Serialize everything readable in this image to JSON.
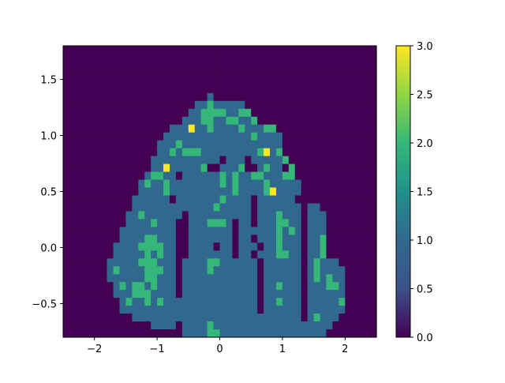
{
  "chart_data": {
    "type": "heatmap",
    "title": "",
    "xlabel": "",
    "ylabel": "",
    "xlim": [
      -2.5,
      2.5
    ],
    "ylim": [
      -0.8,
      1.8
    ],
    "x_ticks": [
      "−2",
      "−1",
      "0",
      "1",
      "2"
    ],
    "x_tick_values": [
      -2,
      -1,
      0,
      1,
      2
    ],
    "y_ticks": [
      "−0.5",
      "0.0",
      "0.5",
      "1.0",
      "1.5"
    ],
    "y_tick_values": [
      -0.5,
      0,
      0.5,
      1.0,
      1.5
    ],
    "colorbar": {
      "range": [
        0,
        3
      ],
      "ticks": [
        "0.0",
        "0.5",
        "1.0",
        "1.5",
        "2.0",
        "2.5",
        "3.0"
      ],
      "tick_values": [
        0,
        0.5,
        1,
        1.5,
        2,
        2.5,
        3
      ],
      "colormap": "viridis"
    },
    "grid": {
      "nx": 50,
      "ny": 37,
      "x_start": -2.5,
      "y_start": -0.8,
      "encoding": "rows listed from top (y=1.8) to bottom (y=-0.8); each string has one digit per cell, left (x=-2.5) to right (x=2.5)",
      "rows": [
        "00000000000000000000000000000000000000000000000000",
        "00000000000000000000000000000000000000000000000000",
        "00000000000000000000000000000000000000000000000000",
        "00000000000000000000000000000000000000000000000000",
        "00000000000000000000000000000000000000000000000000",
        "00000000000000000000000000000000000000000000000000",
        "00000000000000000000000100000000000000000000000000",
        "00000000000000000000011211111000000000000000000000",
        "00000000000000000000112222112200000000000000000000",
        "00000000000000000001112211221120000000000000000000",
        "00000000000000000111311211112111220000000000000000",
        "00000000000000001111111111111121111000000000000000",
        "00000000000000011121111111111111111000000000000000",
        "00000000000000011212221111111112312000000000000000",
        "00000000000000111111111110111011111200000000000000",
        "00000000000000113111112001112001211020000000000000",
        "00000000000001221101111112121122111220000000000000",
        "00000000000012112111111112121111211111000000000000",
        "00000000000011112111111111121111231111000000000000",
        "00000000000111111011111112111101111110000000000000",
        "00000000000111111111111121111101111111011000000000",
        "00000000001121111110111111111101112111011100000000",
        "00000000001111211100111222101101112211011100000000",
        "00000000011111111100111111101111112121011100000000",
        "00000000011112211100111111101101112111011200000000",
        "00000000111122221100111101101110112111011200000000",
        "00000000111112121100111111101101112211011200000000",
        "00000001111122211101111221111110111111012111000000",
        "00000001211112221101111211111110111111012111100000",
        "00000001111112211101111111111110111111012121100000",
        "00000000121221211101111111111110112111011122100000",
        "00000000111222111101111111111110111111011111100000",
        "00000000012112121111111111111110112111011111200000",
        "00000000011111111111111111111110111111011111100000",
        "00000000000111111111111111111111111111012111000000",
        "00000000000000111101111211111111111111111110000000",
        "00000000000000000001111221111111111111111100000000"
      ]
    }
  }
}
